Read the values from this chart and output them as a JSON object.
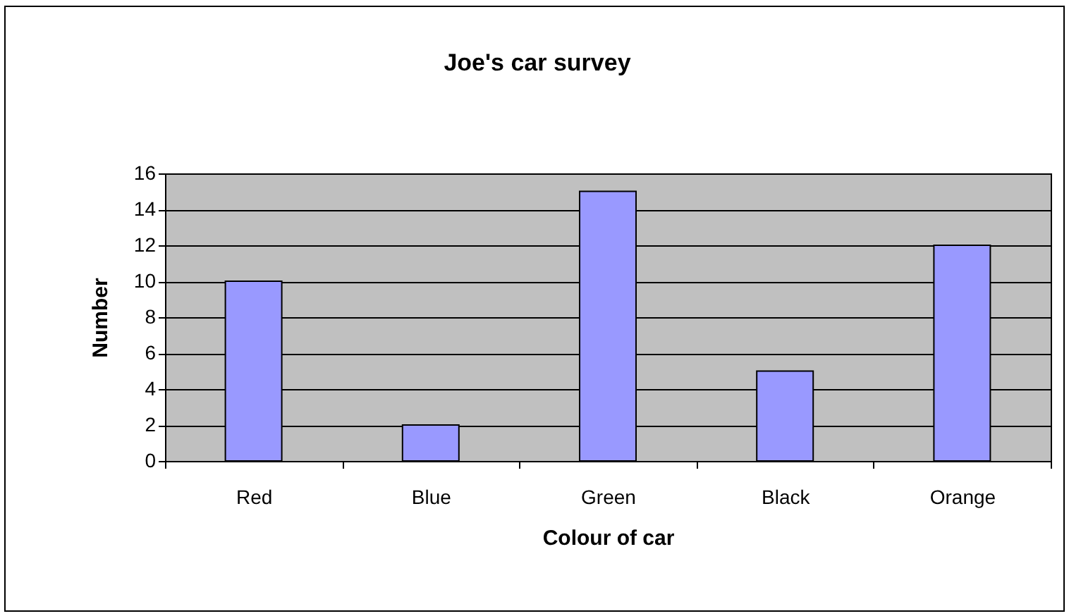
{
  "chart_data": {
    "type": "bar",
    "title": "Joe's car survey",
    "xlabel": "Colour of car",
    "ylabel": "Number",
    "categories": [
      "Red",
      "Blue",
      "Green",
      "Black",
      "Orange"
    ],
    "values": [
      10,
      2,
      15,
      5,
      12
    ],
    "color": "#9999ff",
    "ylim": [
      0,
      16
    ],
    "yticks": [
      0,
      2,
      4,
      6,
      8,
      10,
      12,
      14,
      16
    ],
    "grid": "y"
  }
}
